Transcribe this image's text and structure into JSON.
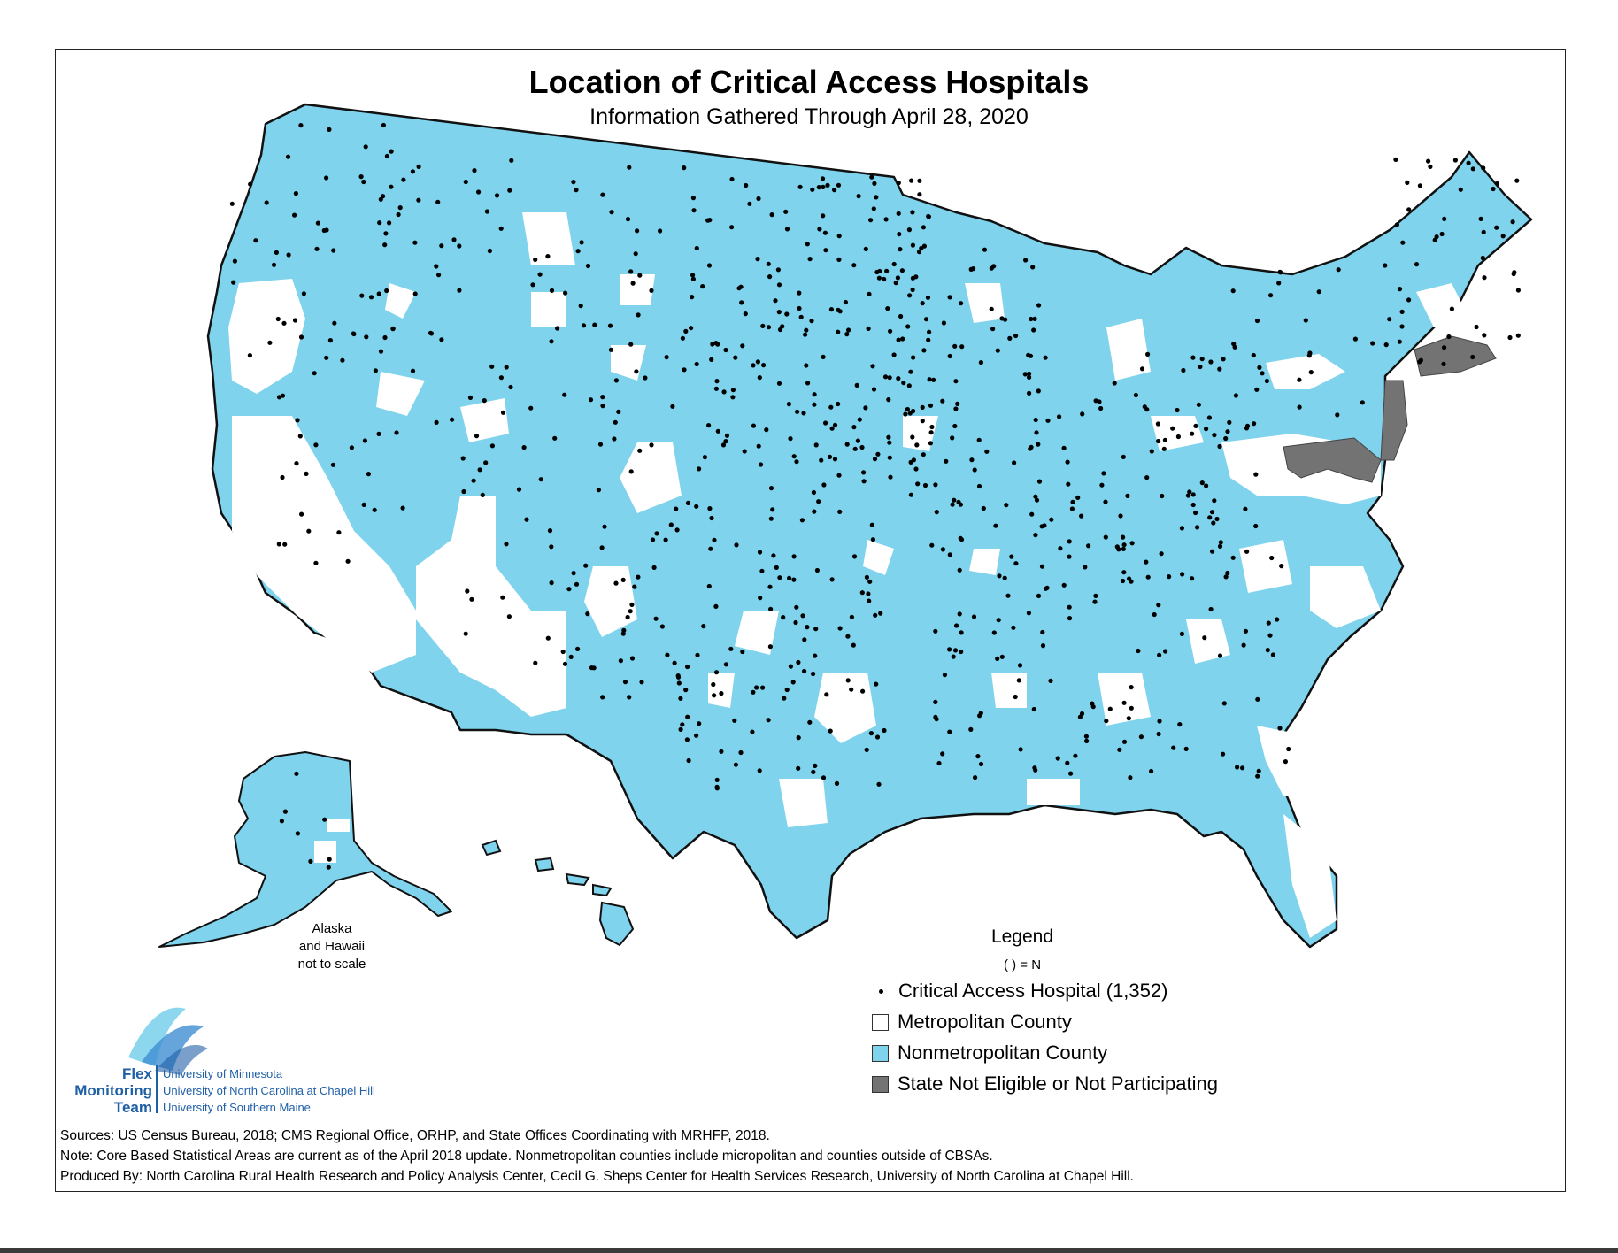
{
  "title": "Location of Critical Access Hospitals",
  "subtitle": "Information Gathered Through April 28, 2020",
  "alaska_note": {
    "line1": "Alaska",
    "line2": "and Hawaii",
    "line3": "not to scale"
  },
  "legend": {
    "title": "Legend",
    "n_note": "( ) = N",
    "items": [
      {
        "label": "Critical Access Hospital (1,352)",
        "symbol": "dot",
        "color": "#000000"
      },
      {
        "label": "Metropolitan County",
        "symbol": "box",
        "color": "#ffffff"
      },
      {
        "label": "Nonmetropolitan County",
        "symbol": "box",
        "color": "#7fd3ec"
      },
      {
        "label": "State Not Eligible or Not Participating",
        "symbol": "box",
        "color": "#737373"
      }
    ]
  },
  "colors": {
    "nonmetro": "#7fd3ec",
    "metro": "#ffffff",
    "not_participating": "#737373",
    "border": "#111111",
    "logo_blue": "#1f5fa6"
  },
  "logo": {
    "word1": "Flex",
    "word2": "Monitoring",
    "word3": "Team",
    "uni1": "University of Minnesota",
    "uni2": "University of North Carolina at Chapel Hill",
    "uni3": "University of Southern Maine"
  },
  "footer": {
    "sources": "Sources: US Census Bureau, 2018; CMS Regional Office, ORHP, and State Offices Coordinating with MRHFP, 2018.",
    "note": "Note: Core Based Statistical Areas are current as of the April 2018 update. Nonmetropolitan counties include micropolitan and counties outside of CBSAs.",
    "produced_by": "Produced By: North Carolina Rural Health Research and Policy Analysis Center, Cecil G. Sheps Center for Health Services Research, University of North Carolina at Chapel Hill."
  }
}
